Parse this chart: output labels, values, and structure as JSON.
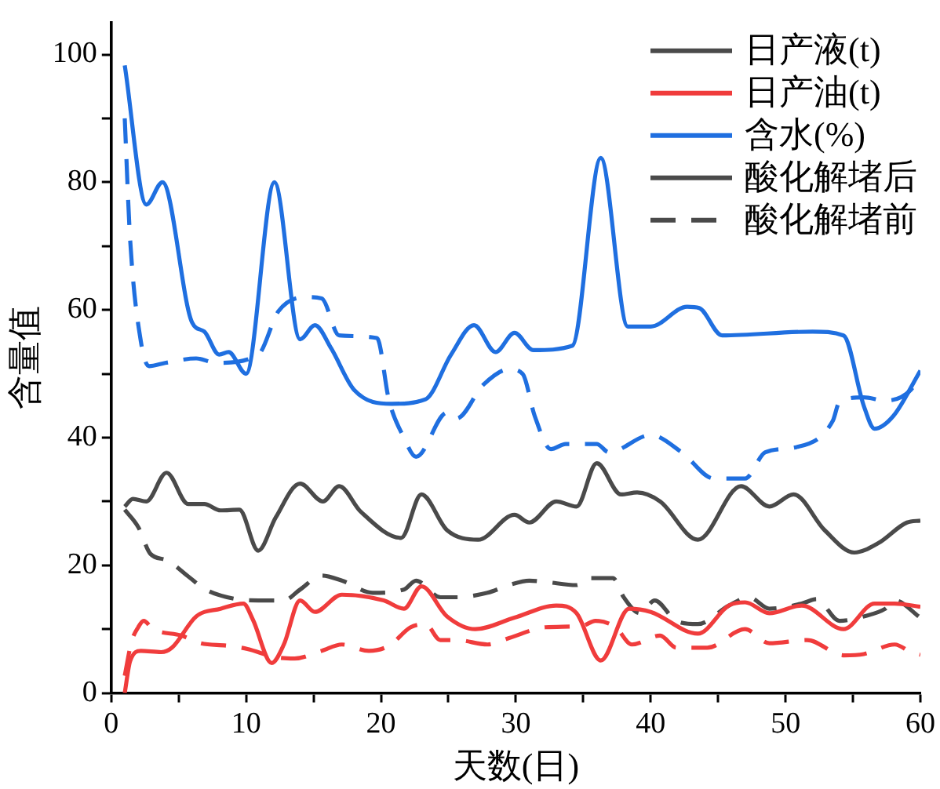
{
  "chart_data": {
    "type": "line",
    "xlabel": "天数(日)",
    "ylabel": "含量值",
    "xlim": [
      0,
      60
    ],
    "ylim": [
      0,
      105
    ],
    "xticks": [
      0,
      {
        "value": 5,
        "label": null
      },
      10,
      {
        "value": 15,
        "label": null
      },
      20,
      {
        "value": 25,
        "label": null
      },
      30,
      {
        "value": 35,
        "label": null
      },
      40,
      {
        "value": 45,
        "label": null
      },
      50,
      {
        "value": 55,
        "label": null
      },
      60
    ],
    "yticks": [
      0,
      {
        "value": 10,
        "label": null
      },
      20,
      {
        "value": 30,
        "label": null
      },
      40,
      {
        "value": 50,
        "label": null
      },
      60,
      {
        "value": 70,
        "label": null
      },
      80,
      {
        "value": 90,
        "label": null
      },
      100
    ],
    "grid": false,
    "legend": "top right",
    "marker": "none",
    "annotations": [
      "酸化解堵后"
    ],
    "series": [
      {
        "name": "日产液(t)",
        "color": "#4a4a4a",
        "line_style": "solid",
        "x": [
          1,
          1.6,
          2.6,
          4.1,
          5.7,
          6.9,
          8.1,
          9.5,
          10.9,
          12.2,
          14,
          15.7,
          16.9,
          18.5,
          21.5,
          23,
          24.9,
          27.2,
          29.9,
          31,
          33,
          34.5,
          36,
          37.8,
          39,
          40.7,
          43.5,
          46.7,
          48.8,
          50.6,
          52.9,
          55.1,
          56.9,
          59,
          60
        ],
        "values": [
          29.2,
          30.4,
          30,
          34.5,
          29.6,
          29.6,
          28.6,
          28.7,
          22.3,
          27.5,
          32.8,
          30,
          32.4,
          28.4,
          24.3,
          31.1,
          25.5,
          24,
          27.9,
          26.7,
          30,
          29.2,
          36,
          31.1,
          31.4,
          30,
          24,
          32.4,
          29.2,
          31.1,
          25.5,
          22,
          23.5,
          26.7,
          27
        ]
      },
      {
        "name": "日产油(t)",
        "color": "#f03c3c",
        "line_style": "solid",
        "x": [
          1,
          1.4,
          2.2,
          3.7,
          4.5,
          6.3,
          8.1,
          9.8,
          10.5,
          11.9,
          12.8,
          14,
          15.1,
          17.1,
          20.2,
          21.7,
          23,
          24.9,
          27,
          29.9,
          33,
          34.5,
          36.3,
          38.4,
          40,
          43.5,
          45.8,
          47,
          48.8,
          51.2,
          54.3,
          56.6,
          58.1,
          60
        ],
        "values": [
          0,
          5,
          6.6,
          6.4,
          7.1,
          12,
          13.2,
          14,
          11.5,
          4.7,
          7.6,
          14.5,
          12.7,
          15.4,
          14.5,
          13.2,
          16.7,
          12,
          10,
          11.8,
          13.7,
          12.5,
          5.1,
          13.2,
          12.7,
          9.3,
          13.7,
          14.2,
          12.5,
          13.7,
          10,
          14,
          14,
          13.5
        ]
      },
      {
        "name": "含水(%)",
        "color": "#1f6fe0",
        "line_style": "solid",
        "x": [
          1,
          2.6,
          3.8,
          6,
          6.9,
          8,
          8.7,
          10,
          12.1,
          14,
          15.1,
          16.3,
          18,
          20.8,
          23.3,
          25.2,
          26.9,
          28.5,
          29.9,
          31.3,
          34.2,
          36.3,
          38.3,
          40,
          42.7,
          43.6,
          45.3,
          52,
          54.3,
          55.8,
          56.6,
          58,
          60
        ],
        "values": [
          98.3,
          76.5,
          80,
          58,
          56.6,
          53,
          53.4,
          50,
          80,
          55.4,
          57.6,
          54,
          47.5,
          45.3,
          46,
          53,
          57.6,
          53.4,
          56.4,
          53.7,
          54.4,
          83.8,
          57.4,
          57.4,
          60.5,
          60.3,
          56,
          56.6,
          56,
          45,
          41.4,
          43.4,
          50.5
        ]
      },
      {
        "name": "酸化解堵前",
        "color": "#4a4a4a",
        "line_style": "dashed",
        "x": [
          1,
          2,
          2.9,
          4.1,
          5.8,
          7,
          9.3,
          10.9,
          12.8,
          14,
          15.6,
          17.1,
          19.4,
          21.7,
          22.6,
          24.4,
          25.6,
          27.9,
          29.5,
          31,
          32.2,
          34.5,
          35.5,
          37.2,
          38,
          39.2,
          40.3,
          41.9,
          43.5,
          45.8,
          47.3,
          48.8,
          51.2,
          52.3,
          54,
          55.8,
          57.4,
          58.1,
          60
        ],
        "values": [
          28.7,
          26,
          21.8,
          20.8,
          18.1,
          16.2,
          14.7,
          14.5,
          14.5,
          16.2,
          18.4,
          17.6,
          15.7,
          16.2,
          17.6,
          15,
          15,
          15.7,
          16.9,
          17.6,
          17.4,
          16.9,
          18,
          18,
          15,
          12.5,
          14.5,
          11.3,
          10.8,
          13.7,
          15,
          13.2,
          14,
          14.7,
          11.3,
          12,
          13.2,
          14.5,
          11.8
        ]
      },
      {
        "color": "#f03c3c",
        "line_style": "dashed",
        "x": [
          1,
          1.5,
          2,
          2.4,
          3.1,
          5.2,
          6.6,
          8.6,
          10.1,
          12.2,
          13.6,
          15.6,
          17.1,
          19.1,
          20.6,
          22.2,
          23.3,
          24.4,
          25.6,
          27.9,
          29.5,
          32.2,
          34.9,
          35.9,
          37.4,
          38.6,
          40.7,
          41.9,
          44.2,
          47,
          48.8,
          51.6,
          54.3,
          55.8,
          58.1,
          59.3,
          60
        ],
        "values": [
          2.7,
          8,
          10.3,
          11.3,
          10,
          9,
          7.8,
          7.4,
          6.9,
          5.6,
          5.4,
          6.6,
          7.6,
          6.6,
          7.4,
          10.3,
          10.8,
          8.3,
          8.3,
          7.6,
          8.6,
          10.3,
          10.5,
          11.3,
          10.3,
          7.6,
          9,
          7.1,
          7.1,
          10,
          7.8,
          8.3,
          5.9,
          6.1,
          7.6,
          6.4,
          6
        ]
      },
      {
        "color": "#1f6fe0",
        "line_style": "dashed",
        "x": [
          1,
          1.4,
          2.2,
          2.8,
          4,
          6.3,
          7.8,
          10.9,
          12.4,
          14.4,
          15.6,
          16.9,
          19.7,
          20.6,
          21.7,
          22.6,
          24.9,
          25.6,
          27.6,
          29.5,
          30.5,
          31.4,
          32.6,
          33.7,
          36,
          36.9,
          40,
          42.3,
          44.7,
          47,
          48.5,
          50.8,
          53.5,
          54,
          55.8,
          57.4,
          59.3,
          60
        ],
        "values": [
          90,
          71,
          55,
          51.2,
          51.7,
          52.4,
          51.7,
          53,
          59.8,
          62,
          61.8,
          56,
          55.6,
          45.8,
          40,
          37,
          43.9,
          43,
          48.3,
          50.7,
          50,
          43.4,
          38.2,
          39,
          39,
          37.7,
          40.4,
          37.7,
          33.6,
          33.6,
          37.7,
          38.5,
          42.6,
          45.6,
          46.3,
          45.8,
          47.5,
          50
        ]
      }
    ]
  }
}
